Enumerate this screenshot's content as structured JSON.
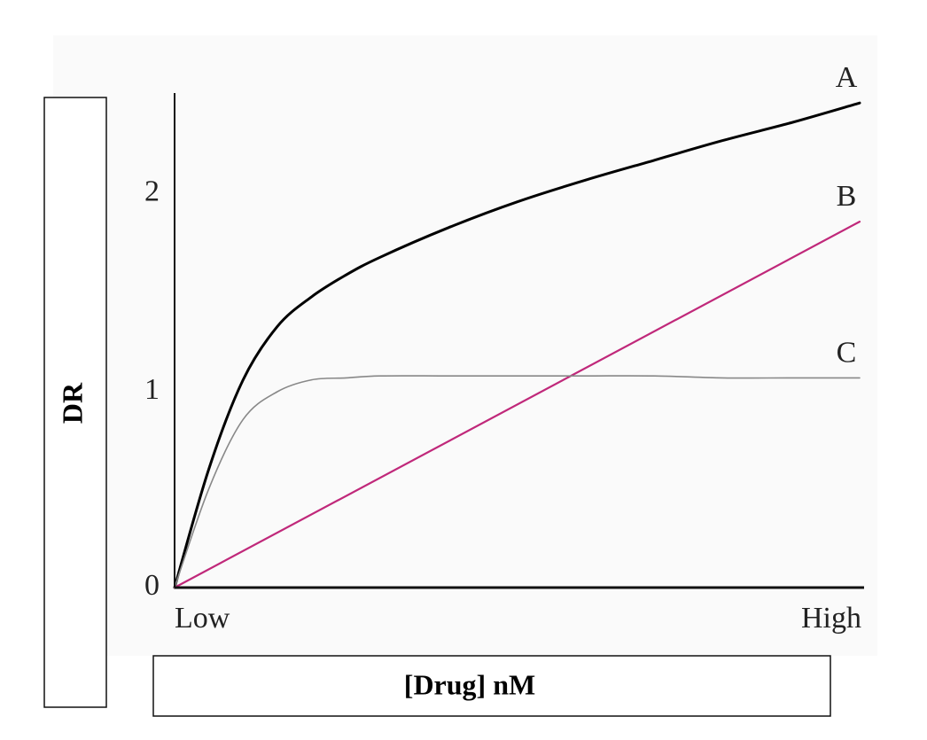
{
  "chart_data": {
    "type": "line",
    "xlabel": "[Drug] nM",
    "ylabel": "DR",
    "x_tick_labels": [
      "Low",
      "High"
    ],
    "y_ticks": [
      0,
      1,
      2
    ],
    "xlim": [
      0,
      1
    ],
    "ylim": [
      0,
      2.5
    ],
    "grid": false,
    "series": [
      {
        "name": "A",
        "color": "#000000",
        "x": [
          0,
          0.05,
          0.1,
          0.15,
          0.2,
          0.25,
          0.3,
          0.4,
          0.5,
          0.6,
          0.7,
          0.8,
          0.9,
          1.0
        ],
        "y": [
          0,
          0.6,
          1.05,
          1.32,
          1.47,
          1.58,
          1.67,
          1.82,
          1.95,
          2.06,
          2.16,
          2.26,
          2.35,
          2.45
        ]
      },
      {
        "name": "B",
        "color": "#c0287a",
        "x": [
          0,
          1.0
        ],
        "y": [
          0,
          1.85
        ]
      },
      {
        "name": "C",
        "color": "#888888",
        "x": [
          0,
          0.05,
          0.1,
          0.15,
          0.2,
          0.25,
          0.3,
          0.4,
          0.5,
          0.6,
          0.7,
          0.8,
          0.9,
          1.0
        ],
        "y": [
          0,
          0.5,
          0.85,
          0.99,
          1.05,
          1.06,
          1.07,
          1.07,
          1.07,
          1.07,
          1.07,
          1.06,
          1.06,
          1.06
        ]
      }
    ]
  }
}
